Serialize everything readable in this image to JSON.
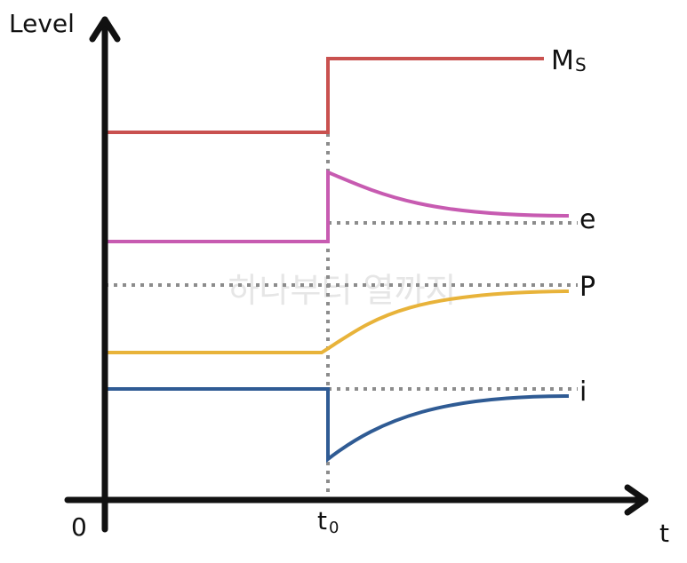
{
  "axes": {
    "y_label": "Level",
    "x_label": "t",
    "origin_label": "0",
    "t0_label_main": "t",
    "t0_label_sub": "0"
  },
  "watermark": "하나부터 열까지",
  "colors": {
    "axis": "#111111",
    "guide": "#8c8c8c",
    "ms": "#c9514f",
    "e": "#c75bb1",
    "p": "#e8b33a",
    "i": "#2f5b94"
  },
  "series": {
    "ms": {
      "label_main": "M",
      "label_sub": "S"
    },
    "e": {
      "label": "e"
    },
    "p": {
      "label": "P"
    },
    "i": {
      "label": "i"
    }
  }
}
